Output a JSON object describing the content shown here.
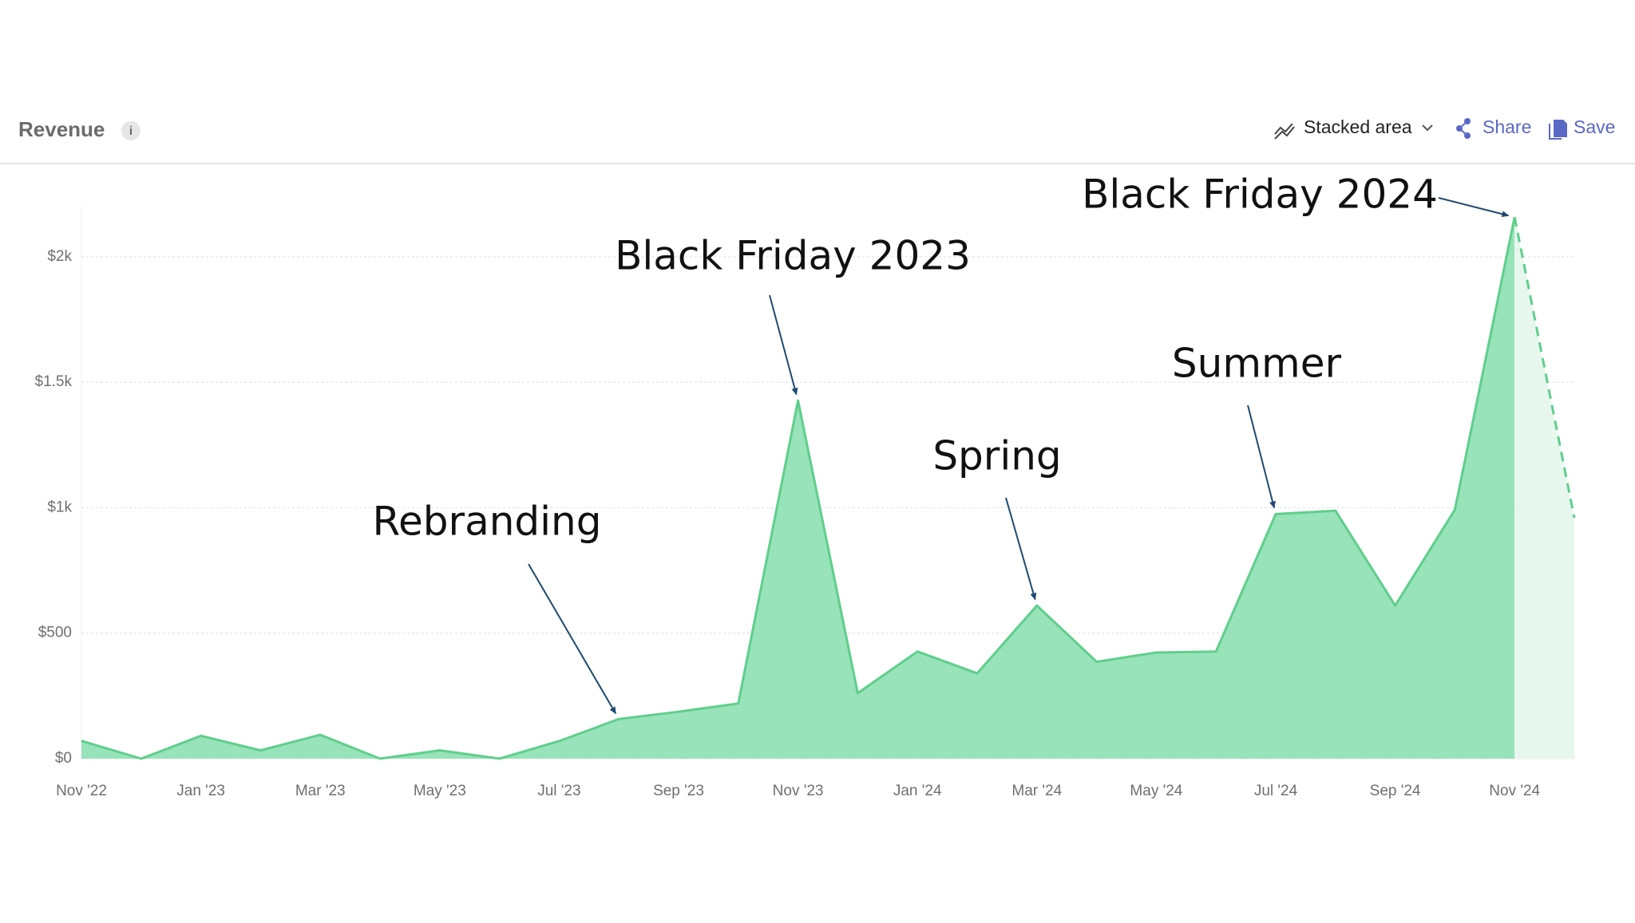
{
  "header": {
    "title": "Revenue",
    "info": "i",
    "view": "Stacked area",
    "share": "Share",
    "save": "Save"
  },
  "chart_data": {
    "type": "area",
    "categories": [
      "Nov '22",
      null,
      "Jan '23",
      null,
      "Mar '23",
      null,
      "May '23",
      null,
      "Jul '23",
      null,
      "Sep '23",
      null,
      "Nov '23",
      null,
      "Jan '24",
      null,
      "Mar '24",
      null,
      "May '24",
      null,
      "Jul '24",
      null,
      "Sep '24",
      null,
      "Nov '24",
      null
    ],
    "series": [
      {
        "name": "Revenue",
        "color": "#5ecf8b",
        "fill": "#98e3b9",
        "projected_fill": "#e7f7ee",
        "values": [
          71,
          0,
          91,
          33,
          95,
          0,
          33,
          0,
          70,
          158,
          187,
          220,
          1427,
          261,
          427,
          340,
          610,
          386,
          423,
          427,
          975,
          988,
          610,
          992,
          2158,
          959
        ]
      }
    ],
    "projected_count": 1,
    "ylim": [
      0,
      2200
    ],
    "yticks": [
      {
        "value": 0,
        "label": "$0"
      },
      {
        "value": 500,
        "label": "$500"
      },
      {
        "value": 1000,
        "label": "$1k"
      },
      {
        "value": 1500,
        "label": "$1.5k"
      },
      {
        "value": 2000,
        "label": "$2k"
      }
    ],
    "grid": true,
    "annotations": [
      {
        "text": "Rebranding",
        "point": 9
      },
      {
        "text": "Black Friday 2023",
        "point": 12
      },
      {
        "text": "Spring",
        "point": 16
      },
      {
        "text": "Summer",
        "point": 20
      },
      {
        "text": "Black Friday 2024",
        "point": 24
      }
    ]
  }
}
